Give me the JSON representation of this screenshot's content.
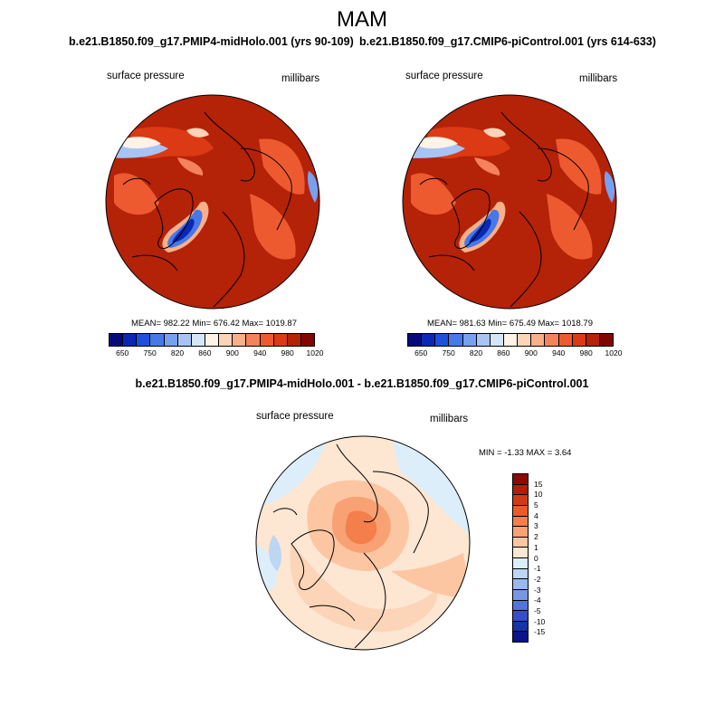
{
  "season": "MAM",
  "panels": [
    {
      "title": "b.e21.B1850.f09_g17.PMIP4-midHolo.001 (yrs 90-109)",
      "variable": "surface pressure",
      "units": "millibars",
      "mean": "982.22",
      "min": "676.42",
      "max": "1019.87",
      "stats_text": "MEAN= 982.22  Min= 676.42  Max= 1019.87"
    },
    {
      "title": "b.e21.B1850.f09_g17.CMIP6-piControl.001 (yrs 614-633)",
      "variable": "surface pressure",
      "units": "millibars",
      "mean": "981.63",
      "min": "675.49",
      "max": "1018.79",
      "stats_text": "MEAN= 981.63  Min= 675.49  Max= 1018.79"
    }
  ],
  "colorbar": {
    "tick_labels": [
      "650",
      "750",
      "820",
      "860",
      "900",
      "940",
      "980",
      "1020"
    ],
    "colors": [
      "#050a7a",
      "#0a28b4",
      "#1e50dc",
      "#4678ea",
      "#78a0f0",
      "#a8c4f4",
      "#d4e6f8",
      "#fff2e6",
      "#fcd4b8",
      "#f8b08a",
      "#f4825a",
      "#ee5a30",
      "#dc3a14",
      "#b42208",
      "#820600"
    ]
  },
  "difference": {
    "title": "b.e21.B1850.f09_g17.PMIP4-midHolo.001 - b.e21.B1850.f09_g17.CMIP6-piControl.001",
    "variable": "surface pressure",
    "units": "millibars",
    "min": "-1.33",
    "max": "3.64",
    "stats_text": "MIN =  -1.33 MAX =   3.64",
    "colorbar_labels": [
      "15",
      "10",
      "5",
      "4",
      "3",
      "2",
      "1",
      "0",
      "-1",
      "-2",
      "-3",
      "-4",
      "-5",
      "-10",
      "-15"
    ],
    "colorbar_colors": [
      "#8c0a00",
      "#b41e06",
      "#d23a14",
      "#ea5a2c",
      "#f47e4c",
      "#f8a274",
      "#fcc6a2",
      "#fde6d2",
      "#dceefa",
      "#bcd6f4",
      "#9ab9ee",
      "#7896e4",
      "#5474dc",
      "#3250c8",
      "#1832a8",
      "#0a1486"
    ]
  }
}
